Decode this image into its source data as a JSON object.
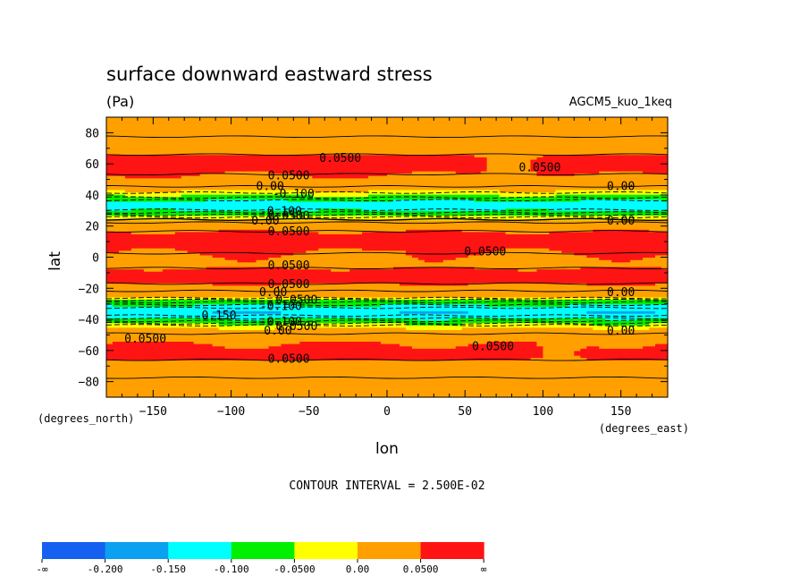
{
  "chart_data": {
    "type": "heatmap",
    "title": "surface downward eastward stress",
    "units": "(Pa)",
    "run_label": "AGCM5_kuo_1keq",
    "xlabel": "lon",
    "ylabel": "lat",
    "x_units": "(degrees_east)",
    "y_units": "(degrees_north)",
    "xlim": [
      -180,
      180
    ],
    "ylim": [
      -90,
      90
    ],
    "x_ticks": [
      -150,
      -100,
      -50,
      0,
      50,
      100,
      150
    ],
    "y_ticks": [
      -80,
      -60,
      -40,
      -20,
      0,
      20,
      40,
      60,
      80
    ],
    "contour_interval_text": "CONTOUR INTERVAL = 2.500E-02",
    "legend": {
      "colors": [
        "#1560f0",
        "#0ba0f0",
        "#00ffff",
        "#00f000",
        "#ffff00",
        "#ffa000",
        "#ff1414"
      ],
      "labels": [
        "-∞",
        "-0.200",
        "-0.150",
        "-0.100",
        "-0.0500",
        "0.00",
        "0.0500",
        "∞"
      ]
    },
    "lat_profile": {
      "lat": [
        -90,
        -80,
        -70,
        -62,
        -55,
        -50,
        -45,
        -42,
        -38,
        -35,
        -32,
        -28,
        -25,
        -21,
        -16,
        -10,
        -5,
        0,
        5,
        10,
        15,
        20,
        23,
        26,
        29,
        32,
        36,
        40,
        43,
        46,
        50,
        55,
        62,
        70,
        80,
        90
      ],
      "stress": [
        0.01,
        0.02,
        0.04,
        0.06,
        0.05,
        0.03,
        0.0,
        -0.06,
        -0.12,
        -0.15,
        -0.12,
        -0.06,
        0.0,
        0.03,
        0.055,
        0.065,
        0.04,
        0.045,
        0.055,
        0.065,
        0.055,
        0.04,
        0.02,
        -0.03,
        -0.08,
        -0.12,
        -0.11,
        -0.05,
        0.0,
        0.03,
        0.04,
        0.055,
        0.06,
        0.04,
        0.02,
        0.01
      ]
    },
    "contour_labels": [
      {
        "lon": -30,
        "lat": 64,
        "text": "0.0500"
      },
      {
        "lon": 98,
        "lat": 58,
        "text": "0.0500"
      },
      {
        "lon": -63,
        "lat": 53,
        "text": "0.0500"
      },
      {
        "lon": -75,
        "lat": 46,
        "text": "0.00"
      },
      {
        "lon": -60,
        "lat": 41,
        "text": "-0.100"
      },
      {
        "lon": -68,
        "lat": 30,
        "text": "-0.100"
      },
      {
        "lon": -63,
        "lat": 27,
        "text": "0.0500"
      },
      {
        "lon": -78,
        "lat": 24,
        "text": "0.00"
      },
      {
        "lon": -63,
        "lat": 17,
        "text": "0.0500"
      },
      {
        "lon": 150,
        "lat": 46,
        "text": "0.00"
      },
      {
        "lon": 150,
        "lat": 24,
        "text": "0.00"
      },
      {
        "lon": 63,
        "lat": 4,
        "text": "0.0500"
      },
      {
        "lon": -63,
        "lat": -5,
        "text": "0.0500"
      },
      {
        "lon": -63,
        "lat": -17,
        "text": "0.0500"
      },
      {
        "lon": -73,
        "lat": -22,
        "text": "0.00"
      },
      {
        "lon": -58,
        "lat": -27,
        "text": "0.0500"
      },
      {
        "lon": -68,
        "lat": -31,
        "text": "-0.100"
      },
      {
        "lon": -110,
        "lat": -37,
        "text": "-0.150"
      },
      {
        "lon": -68,
        "lat": -41,
        "text": "-0.100"
      },
      {
        "lon": -58,
        "lat": -44,
        "text": "0.0500"
      },
      {
        "lon": -70,
        "lat": -47,
        "text": "0.00"
      },
      {
        "lon": 150,
        "lat": -22,
        "text": "0.00"
      },
      {
        "lon": 150,
        "lat": -47,
        "text": "0.00"
      },
      {
        "lon": -155,
        "lat": -52,
        "text": "0.0500"
      },
      {
        "lon": 68,
        "lat": -57,
        "text": "0.0500"
      },
      {
        "lon": -63,
        "lat": -65,
        "text": "0.0500"
      }
    ]
  }
}
